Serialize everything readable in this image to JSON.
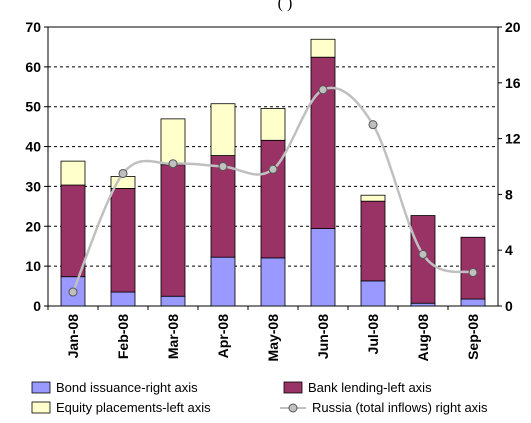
{
  "chart_data": {
    "type": "bar",
    "stacked": true,
    "title_fragment": "(                      )",
    "categories": [
      "Jan-08",
      "Feb-08",
      "Mar-08",
      "Apr-08",
      "May-08",
      "Jun-08",
      "Jul-08",
      "Aug-08",
      "Sep-08"
    ],
    "left_axis": {
      "min": 0,
      "max": 70,
      "ticks": [
        "0",
        "10",
        "20",
        "30",
        "40",
        "50",
        "60",
        "70"
      ]
    },
    "right_axis": {
      "min": 0,
      "max": 20,
      "ticks": [
        "0",
        "4",
        "8",
        "12",
        "16",
        "20"
      ]
    },
    "grid": "horizontal-dashed",
    "legend_position": "bottom",
    "series": [
      {
        "name": "Bond issuance-right axis",
        "axis": "right",
        "kind": "bar",
        "color": "#9999ff",
        "values": [
          2.1,
          1.0,
          0.7,
          3.5,
          3.45,
          5.55,
          1.8,
          0.2,
          0.5
        ]
      },
      {
        "name": "Bank lending-left axis",
        "axis": "left",
        "kind": "bar",
        "color": "#993366",
        "values": [
          23.0,
          26.0,
          33.0,
          25.5,
          29.5,
          43.0,
          20.0,
          22.0,
          15.5
        ]
      },
      {
        "name": "Equity placements-left axis",
        "axis": "left",
        "kind": "bar",
        "color": "#ffffcc",
        "values": [
          6.0,
          3.0,
          11.5,
          13.0,
          8.0,
          4.5,
          1.5,
          0.0,
          0.0
        ]
      },
      {
        "name": "Russia (total inflows) right axis",
        "axis": "right",
        "kind": "line",
        "color": "#c0c0c0",
        "values": [
          1.0,
          9.5,
          10.2,
          10.0,
          9.8,
          15.5,
          13.0,
          3.7,
          2.4
        ]
      }
    ]
  }
}
